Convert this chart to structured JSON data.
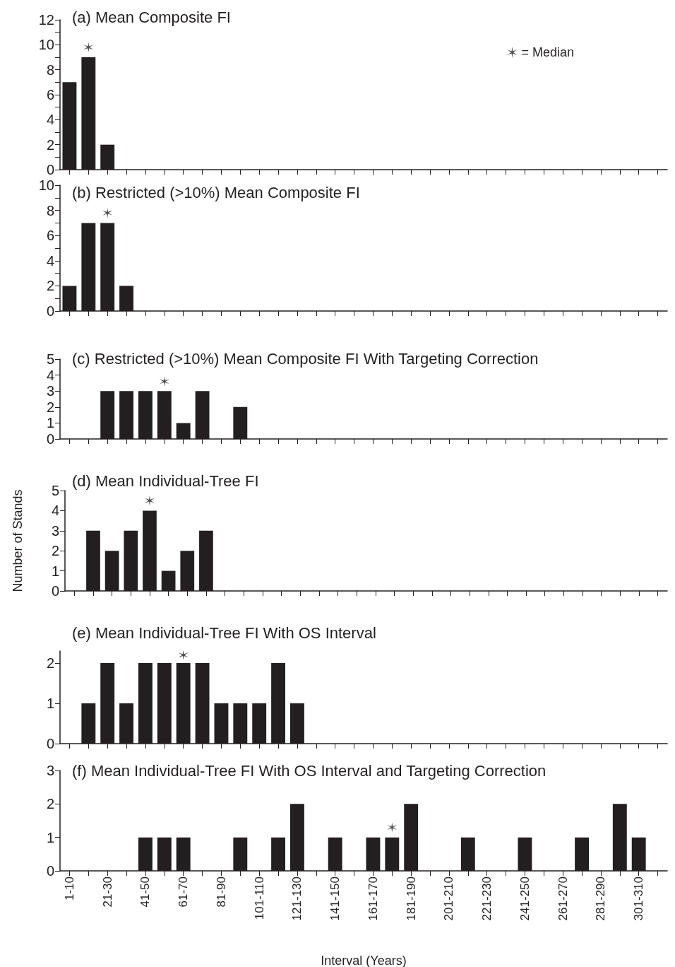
{
  "chart_data": [
    {
      "type": "bar",
      "title": "(a) Mean Composite FI",
      "categories": [
        null,
        null,
        null,
        null,
        null,
        null,
        null,
        null,
        null,
        null,
        null,
        null,
        null,
        null,
        null,
        null,
        null,
        null,
        null,
        null,
        null,
        null,
        null,
        null,
        null,
        null,
        null,
        null,
        null,
        null,
        null,
        null
      ],
      "ylim": [
        0,
        12
      ],
      "yticks": [
        0,
        {
          "value": 1,
          "label": null
        },
        2,
        {
          "value": 3,
          "label": null
        },
        4,
        {
          "value": 5,
          "label": null
        },
        6,
        {
          "value": 7,
          "label": null
        },
        8,
        {
          "value": 9,
          "label": null
        },
        10,
        {
          "value": 11,
          "label": null
        },
        12
      ],
      "tick_labels": "y",
      "grid": false,
      "legend": "top right",
      "marker": "cross",
      "series": [
        {
          "color": "#231f20",
          "values": [
            7,
            9,
            2,
            0,
            0,
            0,
            0,
            0,
            0,
            0,
            0,
            0,
            0,
            0,
            0,
            0,
            0,
            0,
            0,
            0,
            0,
            0,
            0,
            0,
            0,
            0,
            0,
            0,
            0,
            0,
            0,
            0
          ]
        },
        {
          "type": "scatter",
          "name": "= Median",
          "color": "#231f20",
          "values": [
            null,
            9.8,
            null,
            null,
            null,
            null,
            null,
            null,
            null,
            null,
            null,
            null,
            null,
            null,
            null,
            null,
            null,
            null,
            null,
            null,
            null,
            null,
            null,
            null,
            null,
            null,
            null,
            null,
            null,
            null,
            null,
            null
          ]
        }
      ]
    },
    {
      "type": "bar",
      "title": "(b) Restricted (>10%) Mean Composite FI",
      "categories": [
        null,
        null,
        null,
        null,
        null,
        null,
        null,
        null,
        null,
        null,
        null,
        null,
        null,
        null,
        null,
        null,
        null,
        null,
        null,
        null,
        null,
        null,
        null,
        null,
        null,
        null,
        null,
        null,
        null,
        null,
        null,
        null
      ],
      "ylim": [
        0,
        10
      ],
      "yticks": [
        0,
        {
          "value": 1,
          "label": null
        },
        2,
        {
          "value": 3,
          "label": null
        },
        4,
        {
          "value": 5,
          "label": null
        },
        6,
        {
          "value": 7,
          "label": null
        },
        8,
        {
          "value": 9,
          "label": null
        },
        10
      ],
      "tick_labels": "y",
      "grid": false,
      "marker": "cross",
      "series": [
        {
          "color": "#231f20",
          "values": [
            2,
            7,
            7,
            2,
            0,
            0,
            0,
            0,
            0,
            0,
            0,
            0,
            0,
            0,
            0,
            0,
            0,
            0,
            0,
            0,
            0,
            0,
            0,
            0,
            0,
            0,
            0,
            0,
            0,
            0,
            0,
            0
          ]
        },
        {
          "type": "scatter",
          "color": "#231f20",
          "values": [
            null,
            null,
            7.8,
            null,
            null,
            null,
            null,
            null,
            null,
            null,
            null,
            null,
            null,
            null,
            null,
            null,
            null,
            null,
            null,
            null,
            null,
            null,
            null,
            null,
            null,
            null,
            null,
            null,
            null,
            null,
            null,
            null
          ]
        }
      ]
    },
    {
      "type": "bar",
      "title": "(c) Restricted (>10%) Mean Composite FI With Targeting Correction",
      "categories": [
        null,
        null,
        null,
        null,
        null,
        null,
        null,
        null,
        null,
        null,
        null,
        null,
        null,
        null,
        null,
        null,
        null,
        null,
        null,
        null,
        null,
        null,
        null,
        null,
        null,
        null,
        null,
        null,
        null,
        null,
        null,
        null
      ],
      "ylim": [
        0,
        5
      ],
      "yticks": [
        0,
        1,
        2,
        3,
        4,
        5
      ],
      "tick_labels": "y",
      "grid": false,
      "marker": "cross",
      "series": [
        {
          "color": "#231f20",
          "values": [
            0,
            0,
            3,
            3,
            3,
            3,
            1,
            3,
            0,
            2,
            0,
            0,
            0,
            0,
            0,
            0,
            0,
            0,
            0,
            0,
            0,
            0,
            0,
            0,
            0,
            0,
            0,
            0,
            0,
            0,
            0,
            0
          ]
        },
        {
          "type": "scatter",
          "color": "#231f20",
          "values": [
            null,
            null,
            null,
            null,
            null,
            3.6,
            null,
            null,
            null,
            null,
            null,
            null,
            null,
            null,
            null,
            null,
            null,
            null,
            null,
            null,
            null,
            null,
            null,
            null,
            null,
            null,
            null,
            null,
            null,
            null,
            null,
            null
          ]
        }
      ]
    },
    {
      "type": "bar",
      "title": "(d) Mean Individual-Tree FI",
      "ylabel": "Number of Stands",
      "categories": [
        null,
        null,
        null,
        null,
        null,
        null,
        null,
        null,
        null,
        null,
        null,
        null,
        null,
        null,
        null,
        null,
        null,
        null,
        null,
        null,
        null,
        null,
        null,
        null,
        null,
        null,
        null,
        null,
        null,
        null,
        null,
        null
      ],
      "ylim": [
        0,
        5
      ],
      "yticks": [
        0,
        1,
        2,
        3,
        4,
        5
      ],
      "tick_labels": "y",
      "grid": false,
      "marker": "cross",
      "series": [
        {
          "color": "#231f20",
          "values": [
            0,
            3,
            2,
            3,
            4,
            1,
            2,
            3,
            0,
            0,
            0,
            0,
            0,
            0,
            0,
            0,
            0,
            0,
            0,
            0,
            0,
            0,
            0,
            0,
            0,
            0,
            0,
            0,
            0,
            0,
            0,
            0
          ]
        },
        {
          "type": "scatter",
          "color": "#231f20",
          "values": [
            null,
            null,
            null,
            null,
            4.5,
            null,
            null,
            null,
            null,
            null,
            null,
            null,
            null,
            null,
            null,
            null,
            null,
            null,
            null,
            null,
            null,
            null,
            null,
            null,
            null,
            null,
            null,
            null,
            null,
            null,
            null,
            null
          ]
        }
      ]
    },
    {
      "type": "bar",
      "title": "(e) Mean Individual-Tree FI With OS Interval",
      "categories": [
        null,
        null,
        null,
        null,
        null,
        null,
        null,
        null,
        null,
        null,
        null,
        null,
        null,
        null,
        null,
        null,
        null,
        null,
        null,
        null,
        null,
        null,
        null,
        null,
        null,
        null,
        null,
        null,
        null,
        null,
        null,
        null
      ],
      "ylim": [
        0,
        2.3
      ],
      "yticks": [
        0,
        1,
        2
      ],
      "tick_labels": "y",
      "grid": false,
      "marker": "cross",
      "series": [
        {
          "color": "#231f20",
          "values": [
            0,
            1,
            2,
            1,
            2,
            2,
            2,
            2,
            1,
            1,
            1,
            2,
            1,
            0,
            0,
            0,
            0,
            0,
            0,
            0,
            0,
            0,
            0,
            0,
            0,
            0,
            0,
            0,
            0,
            0,
            0,
            0
          ]
        },
        {
          "type": "scatter",
          "color": "#231f20",
          "values": [
            null,
            null,
            null,
            null,
            null,
            null,
            2.2,
            null,
            null,
            null,
            null,
            null,
            null,
            null,
            null,
            null,
            null,
            null,
            null,
            null,
            null,
            null,
            null,
            null,
            null,
            null,
            null,
            null,
            null,
            null,
            null,
            null
          ]
        }
      ]
    },
    {
      "type": "bar",
      "title": "(f) Mean Individual-Tree FI With OS Interval and Targeting Correction",
      "xlabel": "Interval (Years)",
      "categories": [
        "1-10",
        null,
        "21-30",
        null,
        "41-50",
        null,
        "61-70",
        null,
        "81-90",
        null,
        "101-110",
        null,
        "121-130",
        null,
        "141-150",
        null,
        "161-170",
        null,
        "181-190",
        null,
        "201-210",
        null,
        "221-230",
        null,
        "241-250",
        null,
        "261-270",
        null,
        "281-290",
        null,
        "301-310",
        null
      ],
      "ylim": [
        0,
        3
      ],
      "yticks": [
        0,
        1,
        2,
        3
      ],
      "grid": false,
      "marker": "cross",
      "series": [
        {
          "color": "#231f20",
          "values": [
            0,
            0,
            0,
            0,
            1,
            1,
            1,
            0,
            0,
            1,
            0,
            1,
            2,
            0,
            1,
            0,
            1,
            1,
            2,
            0,
            0,
            1,
            0,
            0,
            1,
            0,
            0,
            1,
            0,
            2,
            1,
            0
          ]
        },
        {
          "type": "scatter",
          "color": "#231f20",
          "values": [
            null,
            null,
            null,
            null,
            null,
            null,
            null,
            null,
            null,
            null,
            null,
            null,
            null,
            null,
            null,
            null,
            null,
            1.3,
            null,
            null,
            null,
            null,
            null,
            null,
            null,
            null,
            null,
            null,
            null,
            null,
            null,
            null
          ]
        }
      ]
    }
  ]
}
